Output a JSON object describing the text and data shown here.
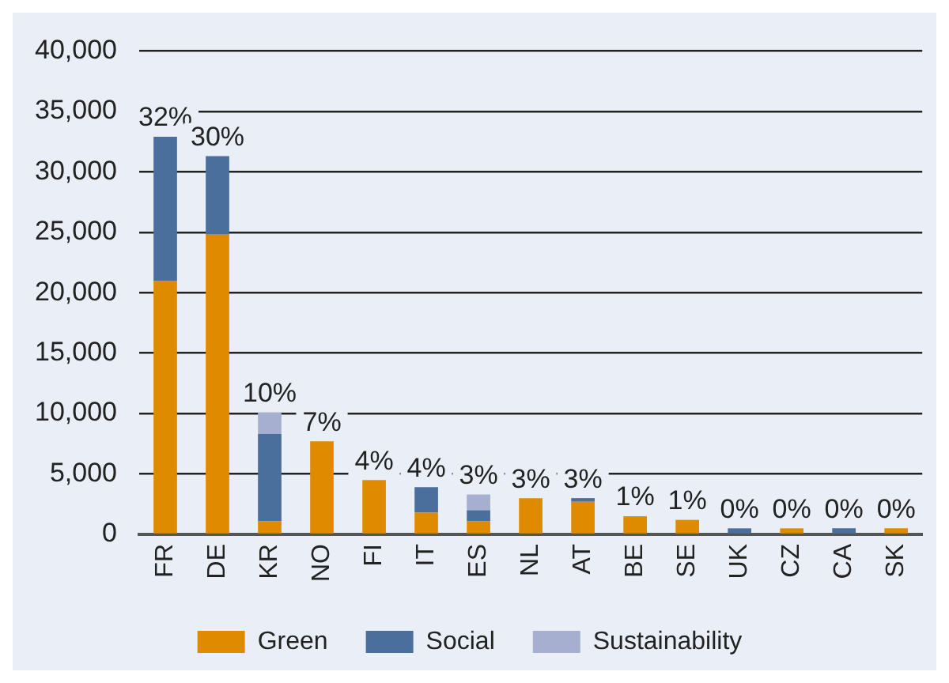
{
  "chart_data": {
    "type": "bar",
    "stacked": true,
    "categories": [
      "FR",
      "DE",
      "KR",
      "NO",
      "FI",
      "IT",
      "ES",
      "NL",
      "AT",
      "BE",
      "SE",
      "UK",
      "CZ",
      "CA",
      "SK"
    ],
    "series": [
      {
        "name": "Green",
        "color": "#e08a00",
        "values": [
          21000,
          24800,
          1100,
          7700,
          4500,
          1800,
          1100,
          3000,
          2700,
          1500,
          1200,
          0,
          500,
          0,
          500
        ]
      },
      {
        "name": "Social",
        "color": "#4a6f9c",
        "values": [
          11900,
          6500,
          7200,
          0,
          0,
          2100,
          900,
          0,
          300,
          0,
          0,
          500,
          0,
          500,
          0
        ]
      },
      {
        "name": "Sustainability",
        "color": "#a6afcf",
        "values": [
          0,
          0,
          1800,
          0,
          0,
          0,
          1300,
          0,
          0,
          0,
          0,
          0,
          0,
          0,
          0
        ]
      }
    ],
    "annotations": [
      {
        "text": "32%",
        "x": "FR",
        "y": 32900
      },
      {
        "text": "30%",
        "x": "DE",
        "y": 31300
      },
      {
        "text": "10%",
        "x": "KR",
        "y": 10100
      },
      {
        "text": "7%",
        "x": "NO",
        "y": 7700
      },
      {
        "text": "4%",
        "x": "FI",
        "y": 4500
      },
      {
        "text": "4%",
        "x": "IT",
        "y": 3900
      },
      {
        "text": "3%",
        "x": "ES",
        "y": 3300
      },
      {
        "text": "3%",
        "x": "NL",
        "y": 3000
      },
      {
        "text": "3%",
        "x": "AT",
        "y": 3000
      },
      {
        "text": "1%",
        "x": "BE",
        "y": 1500
      },
      {
        "text": "1%",
        "x": "SE",
        "y": 1200
      },
      {
        "text": "0%",
        "x": "UK",
        "y": 500
      },
      {
        "text": "0%",
        "x": "CZ",
        "y": 500
      },
      {
        "text": "0%",
        "x": "CA",
        "y": 500
      },
      {
        "text": "0%",
        "x": "SK",
        "y": 500
      }
    ],
    "ylim": [
      0,
      40000
    ],
    "yticks": [
      {
        "value": 0,
        "label": "0"
      },
      {
        "value": 5000,
        "label": "5,000"
      },
      {
        "value": 10000,
        "label": "10,000"
      },
      {
        "value": 15000,
        "label": "15,000"
      },
      {
        "value": 20000,
        "label": "20,000"
      },
      {
        "value": 25000,
        "label": "25,000"
      },
      {
        "value": 30000,
        "label": "30,000"
      },
      {
        "value": 35000,
        "label": "35,000"
      },
      {
        "value": 40000,
        "label": "40,000"
      }
    ],
    "grid": "y",
    "legend": "bottom"
  }
}
